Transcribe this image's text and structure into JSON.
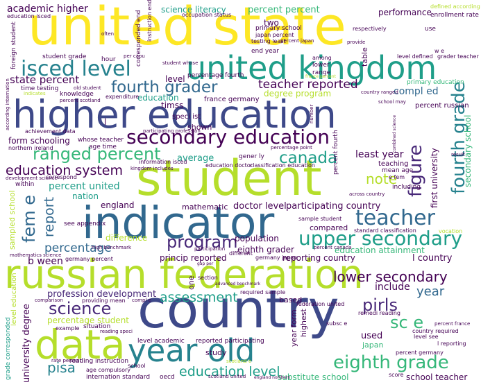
{
  "palette": {
    "yellow": "#fde725",
    "lime": "#b5de2b",
    "green": "#6ece58",
    "sea": "#35b779",
    "teal": "#1f9e89",
    "cyan": "#26828e",
    "blue": "#31688e",
    "indigo": "#3e4989",
    "purple": "#482878",
    "dark": "#440154"
  },
  "words": {
    "united_state": "united state",
    "higher_education": "higher education",
    "student": "student",
    "russian_federation": "russian federation",
    "country": "country",
    "indicator": "indicator",
    "united_kingdom": "united kingdom",
    "year_old": "year old",
    "data": "data",
    "secondary_education": "secondary education",
    "isced_level": "isced level",
    "upper_secondary": "upper secondary",
    "eighth_grade": "eighth grade",
    "teacher": "teacher",
    "fourth_grader": "fourth grader",
    "ranged_percent": "ranged percent",
    "fourth_grade": "fourth grade",
    "figure": "figure",
    "program": "program",
    "canada": "canada",
    "lower_secondary": "lower secondary",
    "science": "science",
    "pirls": "pirls",
    "sc_e": "sc e",
    "assessment": "assessment",
    "education_level": "education level",
    "education_system": "education system",
    "teacher_reported": "teacher reported",
    "fem_e": "fem e",
    "report": "report",
    "state_percent": "state percent",
    "academic_higher": "academic higher",
    "science_literacy": "science literacy",
    "percent_percent": "percent percent",
    "performance": "performance",
    "percentage": "percentage",
    "percent_united": "percent united",
    "form_schooling": "form schooling",
    "doctor_level": "doctor level",
    "participating_country": "participating country",
    "eighth_grader": "eighth grader",
    "reporting_country": "reporting country",
    "population": "population",
    "percentage_student": "percentage student",
    "profession_development": "profession development",
    "university_degree": "university degree",
    "pisa": "pisa",
    "year": "year",
    "include": "include",
    "degree_program": "degree program",
    "compl_ed": "compl ed",
    "least_year": "least year",
    "average": "average",
    "note": "note",
    "first_university": "first university",
    "secondary_school": "secondary school",
    "education_attainment": "education attainment",
    "l_country": "l country",
    "b_ween": "b ween",
    "princip_reported": "princip reported",
    "compared": "compared",
    "mathematic": "mathematic",
    "england": "england",
    "nation": "nation",
    "difference": "difference",
    "year_form": "year form",
    "highest": "highest",
    "school_teacher": "school teacher",
    "substitute_school": "substitute school",
    "used": "used",
    "japan": "japan",
    "sampled_school": "sampled school",
    "level_education": "level education",
    "grade_corresponded": "grade corresponded",
    "timss": "timss",
    "speci_ist": "speci ist",
    "education": "education",
    "france_germany": "france germany",
    "two": "two",
    "primary_school": "primary school",
    "end_year": "end year",
    "student_grade": "student grade",
    "level": "level",
    "percentage_fourth": "percentage fourth",
    "lower": "lower",
    "range": "range",
    "table": "table",
    "percent_russian": "percent russian",
    "primary_education": "primary education",
    "teaching": "teaching",
    "mean_age": "mean age",
    "whose_teacher": "whose teacher",
    "age_time": "age time",
    "shown": "shown",
    "gener_ly": "gener ly",
    "information_isced": "information isced",
    "education_doctor": "education doctor",
    "classification_education": "classification education",
    "percent_fourth": "percent fourth",
    "percentage_point": "percentage point",
    "including": "including",
    "across_country": "across country",
    "sample_student": "sample student",
    "standard_classification": "standard classification",
    "see_appendix": "see appendix",
    "reading_instruction": "reading instruction",
    "internation_standard": "internation standard",
    "scotland_united": "scotland united",
    "oecd": "oecd",
    "study": "study",
    "level_academic": "level academic",
    "reported_participating": "reported participating",
    "required_sample": "required sample",
    "federation_united": "federation united",
    "based": "based",
    "section": "section",
    "one": "one",
    "example": "example",
    "situation": "situation",
    "providing_mean": "providing mean",
    "age_compulsory": "age compulsory",
    "reading_speci": "reading speci",
    "remedi_reading": "remedi reading",
    "country_required": "country required",
    "level_see": "level see",
    "percent_germany": "percent germany",
    "score": "score",
    "rate_percent": "rate percent",
    "school": "school",
    "subsc_e": "subsc e",
    "l_reporting": "l reporting",
    "percent_france": "percent france",
    "germany_japan": "germany japan",
    "germany_percent": "germany percent",
    "different": "different",
    "participation": "participation",
    "within": "within",
    "correspond": "correspond",
    "development_science": "development science",
    "enrollment_rate": "enrollment rate",
    "defined_according": "defined according",
    "use": "use",
    "respectively": "respectively",
    "provide": "provide",
    "japan_percent": "japan percent",
    "testing_least": "testing least",
    "corresponded_end": "corresponded end",
    "instruction_end": "instruction end",
    "occupation_status": "occupation status",
    "education_isced": "education isced",
    "foreign_student": "foreign student",
    "hour": "hour",
    "student_whose": "student whose",
    "among": "among",
    "level_defined": "level defined",
    "grader_teacher": "grader teacher",
    "time_testing": "time testing",
    "knowledge": "knowledge",
    "percent_scotland": "percent scotland",
    "expenditure": "expenditure",
    "country_ranged": "country ranged",
    "school_may": "school may",
    "achievement_data": "achievement data",
    "participating_profession": "participating profession",
    "northern_ireland": "northern ireland",
    "kingdom_includes": "kingdom includes",
    "according_internation": "according internation",
    "old_student": "old student",
    "often": "often",
    "indicates": "indicates",
    "per_capu": "per capu",
    "number": "number",
    "vocation": "vocation",
    "result": "result",
    "combined_science": "combined science",
    "mathematics_science": "mathematics science",
    "high_benchmark": "high benchmark",
    "percent_canada": "percent canada",
    "advanced_benchmark": "advanced benchmark",
    "comparison": "comparison",
    "compl_e": "compl e",
    "scotland_e": "scotland e",
    "england_northern": "england northern",
    "gap_per": "gap per",
    "percent_japan": "percent japan",
    "e_fem": "e fem",
    "l": "l",
    "w_e": "w e",
    "france_percent": "france percent"
  }
}
